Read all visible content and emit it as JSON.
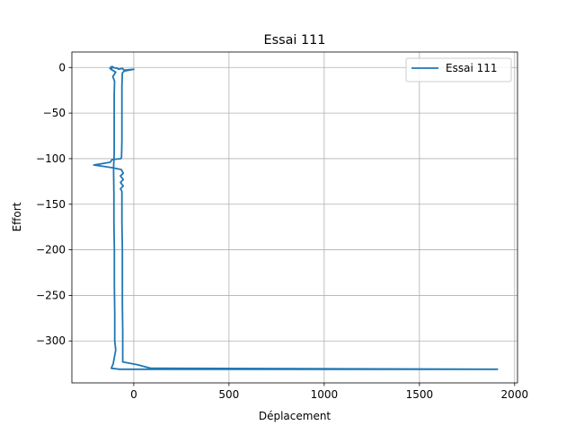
{
  "chart_data": {
    "type": "line",
    "title": "Essai 111",
    "xlabel": "Déplacement",
    "ylabel": "Effort",
    "xlim": [
      -325,
      2015
    ],
    "ylim": [
      -346,
      17
    ],
    "xticks": [
      0,
      500,
      1000,
      1500,
      2000
    ],
    "yticks": [
      0,
      -50,
      -100,
      -150,
      -200,
      -250,
      -300
    ],
    "grid": true,
    "legend_position": "upper right",
    "series": [
      {
        "name": "Essai 111",
        "color": "#1f77b4",
        "points": [
          [
            -120,
            0
          ],
          [
            -125,
            -1
          ],
          [
            -118,
            1
          ],
          [
            -110,
            0
          ],
          [
            -85,
            -1
          ],
          [
            -80,
            -2
          ],
          [
            -60,
            -1
          ],
          [
            -50,
            -3
          ],
          [
            0,
            -2
          ],
          [
            -50,
            -4
          ],
          [
            -60,
            -6
          ],
          [
            -62,
            -20
          ],
          [
            -62,
            -50
          ],
          [
            -62,
            -80
          ],
          [
            -64,
            -98
          ],
          [
            -67,
            -100
          ],
          [
            -115,
            -101
          ],
          [
            -120,
            -103
          ],
          [
            -125,
            -104
          ],
          [
            -210,
            -107
          ],
          [
            -140,
            -109
          ],
          [
            -110,
            -110
          ],
          [
            -65,
            -112
          ],
          [
            -55,
            -116
          ],
          [
            -70,
            -119
          ],
          [
            -55,
            -123
          ],
          [
            -70,
            -126
          ],
          [
            -55,
            -130
          ],
          [
            -70,
            -133
          ],
          [
            -62,
            -136
          ],
          [
            -62,
            -170
          ],
          [
            -60,
            -200
          ],
          [
            -60,
            -230
          ],
          [
            -60,
            -260
          ],
          [
            -58,
            -290
          ],
          [
            -58,
            -323
          ],
          [
            20,
            -326
          ],
          [
            90,
            -330
          ],
          [
            1910,
            -331
          ],
          [
            150,
            -331
          ],
          [
            60,
            -331
          ],
          [
            -75,
            -331
          ],
          [
            -118,
            -330
          ],
          [
            -108,
            -325
          ],
          [
            -102,
            -318
          ],
          [
            -95,
            -310
          ],
          [
            -100,
            -300
          ],
          [
            -100,
            -270
          ],
          [
            -102,
            -240
          ],
          [
            -102,
            -200
          ],
          [
            -104,
            -170
          ],
          [
            -104,
            -140
          ],
          [
            -106,
            -110
          ],
          [
            -103,
            -95
          ],
          [
            -103,
            -60
          ],
          [
            -103,
            -30
          ],
          [
            -101,
            -15
          ],
          [
            -110,
            -10
          ],
          [
            -95,
            -5
          ],
          [
            -120,
            -2
          ],
          [
            -110,
            1
          ]
        ]
      }
    ]
  }
}
